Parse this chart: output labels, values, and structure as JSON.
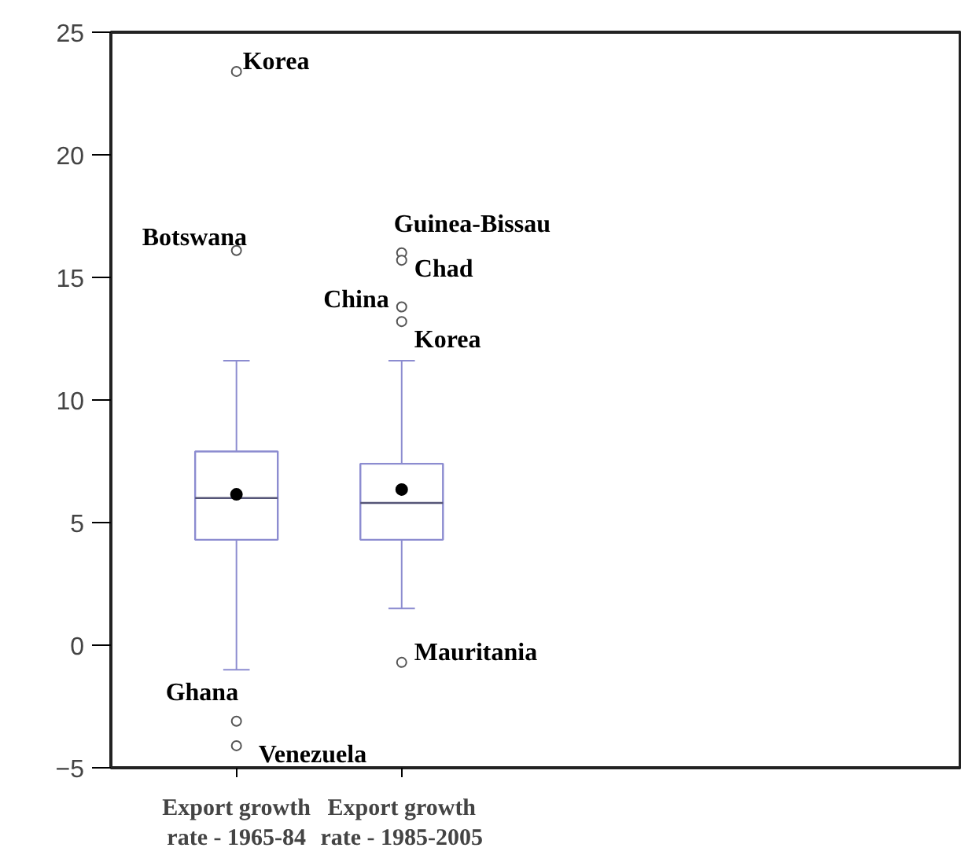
{
  "chart_data": {
    "type": "box",
    "categories": [
      "Export growth rate - 1965-84",
      "Export growth rate - 1985-2005"
    ],
    "boxes": [
      {
        "low": -1.0,
        "q1": 4.3,
        "median": 6.0,
        "q3": 7.9,
        "high": 11.6,
        "mean": 6.15,
        "outliers": [
          23.4,
          16.1,
          -3.1,
          -4.1
        ]
      },
      {
        "low": 1.5,
        "q1": 4.3,
        "median": 5.8,
        "q3": 7.4,
        "high": 11.6,
        "mean": 6.35,
        "outliers": [
          16.0,
          15.7,
          13.8,
          13.2,
          -0.7
        ]
      }
    ],
    "color": "#8c8cd0",
    "ylim": [
      -5,
      25
    ],
    "yticks": [
      -5,
      0,
      5,
      10,
      15,
      20,
      25
    ],
    "grid": false,
    "annotations": [
      "Korea",
      "Botswana",
      "Ghana",
      "Venezuela",
      "Guinea-Bissau",
      "Chad",
      "China",
      "Korea",
      "Mauritania"
    ]
  }
}
